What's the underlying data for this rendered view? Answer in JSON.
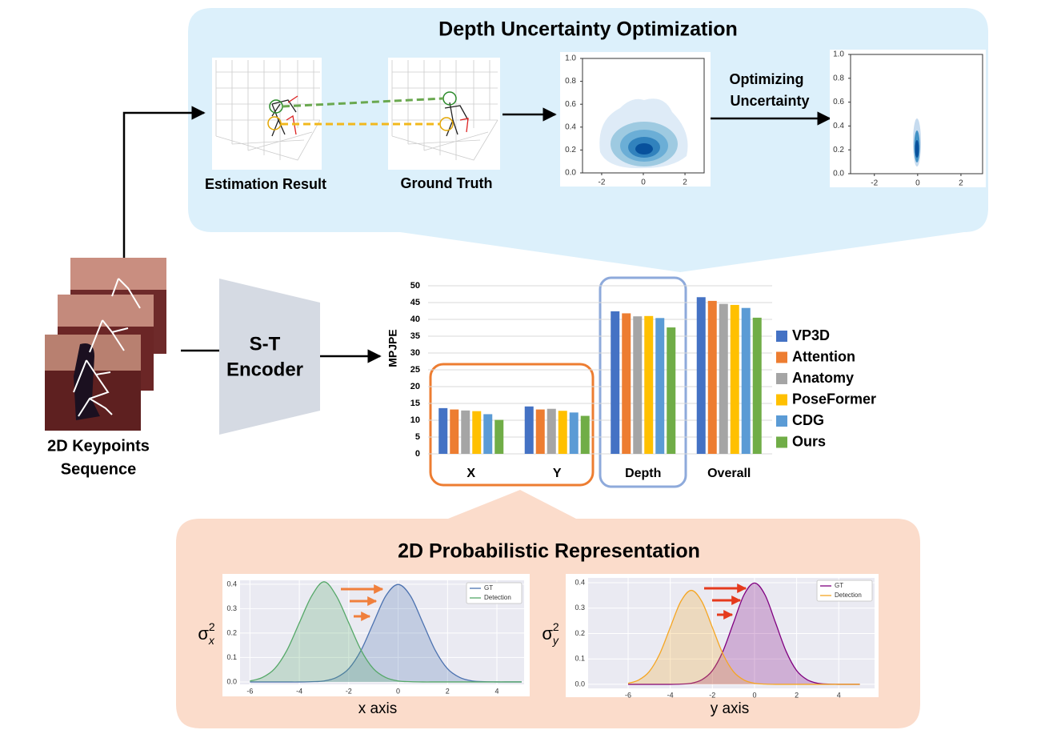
{
  "top_panel": {
    "title": "Depth Uncertainty Optimization",
    "estimation_label": "Estimation Result",
    "ground_truth_label": "Ground Truth",
    "arrow_label": [
      "Optimizing",
      "Uncertainty"
    ]
  },
  "input_label": [
    "2D Keypoints",
    "Sequence"
  ],
  "encoder_label": [
    "S-T",
    "Encoder"
  ],
  "bottom_panel": {
    "title": "2D Probabilistic Representation"
  },
  "chart_data": [
    {
      "type": "bar",
      "ylabel": "MPJPE",
      "categories": [
        "X",
        "Y",
        "Depth",
        "Overall"
      ],
      "series": [
        {
          "name": "VP3D",
          "color": "#4472c4",
          "values": [
            13.6,
            14.1,
            42.4,
            46.6
          ]
        },
        {
          "name": "Attention",
          "color": "#ed7d31",
          "values": [
            13.2,
            13.2,
            41.8,
            45.5
          ]
        },
        {
          "name": "Anatomy",
          "color": "#a5a5a5",
          "values": [
            12.9,
            13.4,
            40.9,
            44.6
          ]
        },
        {
          "name": "PoseFormer",
          "color": "#ffc000",
          "values": [
            12.7,
            12.8,
            41.0,
            44.3
          ]
        },
        {
          "name": "CDG",
          "color": "#5b9bd5",
          "values": [
            11.8,
            12.3,
            40.4,
            43.4
          ]
        },
        {
          "name": "Ours",
          "color": "#70ad47",
          "values": [
            10.1,
            11.3,
            37.6,
            40.5
          ]
        }
      ],
      "ylim": [
        0,
        50
      ],
      "yticks": [
        0,
        5,
        10,
        15,
        20,
        25,
        30,
        35,
        40,
        45,
        50
      ],
      "grid": true
    },
    {
      "type": "density",
      "xlim": [
        -2.92,
        2.92
      ],
      "ylim": [
        0,
        1
      ],
      "xticks": [
        -2,
        0,
        2
      ],
      "yticks": [
        {
          "value": 0,
          "label": "0.0"
        },
        {
          "value": 0.2,
          "label": "0.2"
        },
        {
          "value": 0.4,
          "label": "0.4"
        },
        {
          "value": 0.6,
          "label": "0.6"
        },
        {
          "value": 0.8,
          "label": "0.8"
        },
        {
          "value": 1,
          "label": "1.0"
        }
      ]
    },
    {
      "type": "density",
      "xlim": [
        -3.1,
        3.0
      ],
      "ylim": [
        0,
        1
      ],
      "xticks": [
        -2,
        0,
        2
      ],
      "yticks": [
        {
          "value": 0,
          "label": "0.0"
        },
        {
          "value": 0.2,
          "label": "0.2"
        },
        {
          "value": 0.4,
          "label": "0.4"
        },
        {
          "value": 0.6,
          "label": "0.6"
        },
        {
          "value": 0.8,
          "label": "0.8"
        },
        {
          "value": 1,
          "label": "1.0"
        }
      ]
    },
    {
      "type": "line",
      "xlabel": "x axis",
      "ylabel": "σ",
      "ylabel_sub": "x",
      "ylabel_sup": "2",
      "x": [
        -6,
        -5.5,
        -5,
        -4.5,
        -4,
        -3.5,
        -3,
        -2.5,
        -2,
        -1.5,
        -1,
        -0.5,
        0,
        0.5,
        1,
        1.5,
        2,
        2.5,
        3,
        3.5,
        4,
        4.5,
        5
      ],
      "series": [
        {
          "name": "GT",
          "color": "#4c72b0",
          "values": [
            0,
            0,
            0,
            0,
            0,
            0.001,
            0.004,
            0.018,
            0.054,
            0.13,
            0.242,
            0.352,
            0.399,
            0.352,
            0.242,
            0.13,
            0.054,
            0.018,
            0.004,
            0.001,
            0,
            0,
            0
          ]
        },
        {
          "name": "Detection",
          "color": "#55a868",
          "values": [
            0.004,
            0.018,
            0.054,
            0.13,
            0.242,
            0.352,
            0.41,
            0.352,
            0.242,
            0.13,
            0.054,
            0.018,
            0.004,
            0.001,
            0,
            0,
            0,
            0,
            0,
            0,
            0,
            0,
            0
          ]
        }
      ],
      "xlim": [
        -6.4,
        5.1
      ],
      "ylim": [
        -0.01,
        0.416
      ],
      "xticks": [
        -6,
        -4,
        -2,
        0,
        2,
        4
      ],
      "yticks": [
        {
          "value": 0,
          "label": "0.0"
        },
        {
          "value": 0.1,
          "label": "0.1"
        },
        {
          "value": 0.2,
          "label": "0.2"
        },
        {
          "value": 0.3,
          "label": "0.3"
        },
        {
          "value": 0.4,
          "label": "0.4"
        }
      ],
      "grid": true
    },
    {
      "type": "line",
      "xlabel": "y  axis",
      "ylabel": "σ",
      "ylabel_sub": "y",
      "ylabel_sup": "2",
      "x": [
        -6,
        -5.5,
        -5,
        -4.5,
        -4,
        -3.5,
        -3,
        -2.5,
        -2,
        -1.5,
        -1,
        -0.5,
        0,
        0.5,
        1,
        1.5,
        2,
        2.5,
        3,
        3.5,
        4,
        4.5,
        5
      ],
      "series": [
        {
          "name": "GT",
          "color": "#800080",
          "values": [
            0,
            0,
            0,
            0,
            0,
            0.001,
            0.004,
            0.018,
            0.054,
            0.13,
            0.242,
            0.352,
            0.399,
            0.352,
            0.242,
            0.13,
            0.054,
            0.018,
            0.004,
            0.001,
            0,
            0,
            0
          ]
        },
        {
          "name": "Detection",
          "color": "#f5a623",
          "values": [
            0.004,
            0.017,
            0.05,
            0.12,
            0.224,
            0.326,
            0.37,
            0.326,
            0.224,
            0.12,
            0.05,
            0.017,
            0.004,
            0.001,
            0,
            0,
            0,
            0,
            0,
            0,
            0,
            0,
            0
          ]
        }
      ],
      "xlim": [
        -7.9,
        5.7
      ],
      "ylim": [
        -0.016,
        0.419
      ],
      "xticks": [
        -6,
        -4,
        -2,
        0,
        2,
        4
      ],
      "yticks": [
        {
          "value": 0,
          "label": "0.0"
        },
        {
          "value": 0.1,
          "label": "0.1"
        },
        {
          "value": 0.2,
          "label": "0.2"
        },
        {
          "value": 0.3,
          "label": "0.3"
        },
        {
          "value": 0.4,
          "label": "0.4"
        }
      ],
      "grid": true
    }
  ]
}
